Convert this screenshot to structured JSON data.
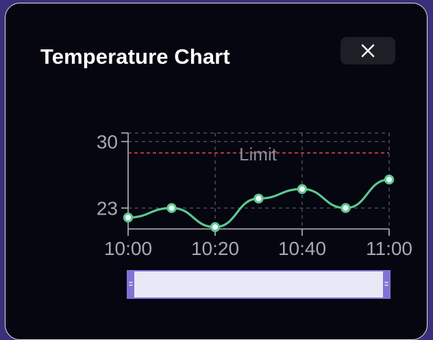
{
  "dialog": {
    "title": "Temperature Chart",
    "close_icon": "close-icon"
  },
  "colors": {
    "background": "#05060f",
    "line": "#5cc890",
    "limit": "#e0504f",
    "grid": "#5a5a66",
    "axis": "#b8b8c2",
    "slider_fill": "#e8e8f6",
    "slider_border": "#7e74d6"
  },
  "chart_data": {
    "type": "line",
    "title": "",
    "xlabel": "",
    "ylabel": "",
    "x": [
      "10:00",
      "10:10",
      "10:20",
      "10:30",
      "10:40",
      "10:50",
      "11:00"
    ],
    "series": [
      {
        "values": [
          22,
          23,
          21,
          24,
          25,
          23,
          26
        ]
      }
    ],
    "x_ticks": [
      "10:00",
      "10:20",
      "10:40",
      "11:00"
    ],
    "y_ticks": [
      23,
      30
    ],
    "ylim": [
      20.8,
      30.9
    ],
    "grid": true,
    "limit_line": {
      "value": 28.8,
      "label": "Limit"
    }
  },
  "range_slider": {
    "start": 0,
    "end": 1
  }
}
